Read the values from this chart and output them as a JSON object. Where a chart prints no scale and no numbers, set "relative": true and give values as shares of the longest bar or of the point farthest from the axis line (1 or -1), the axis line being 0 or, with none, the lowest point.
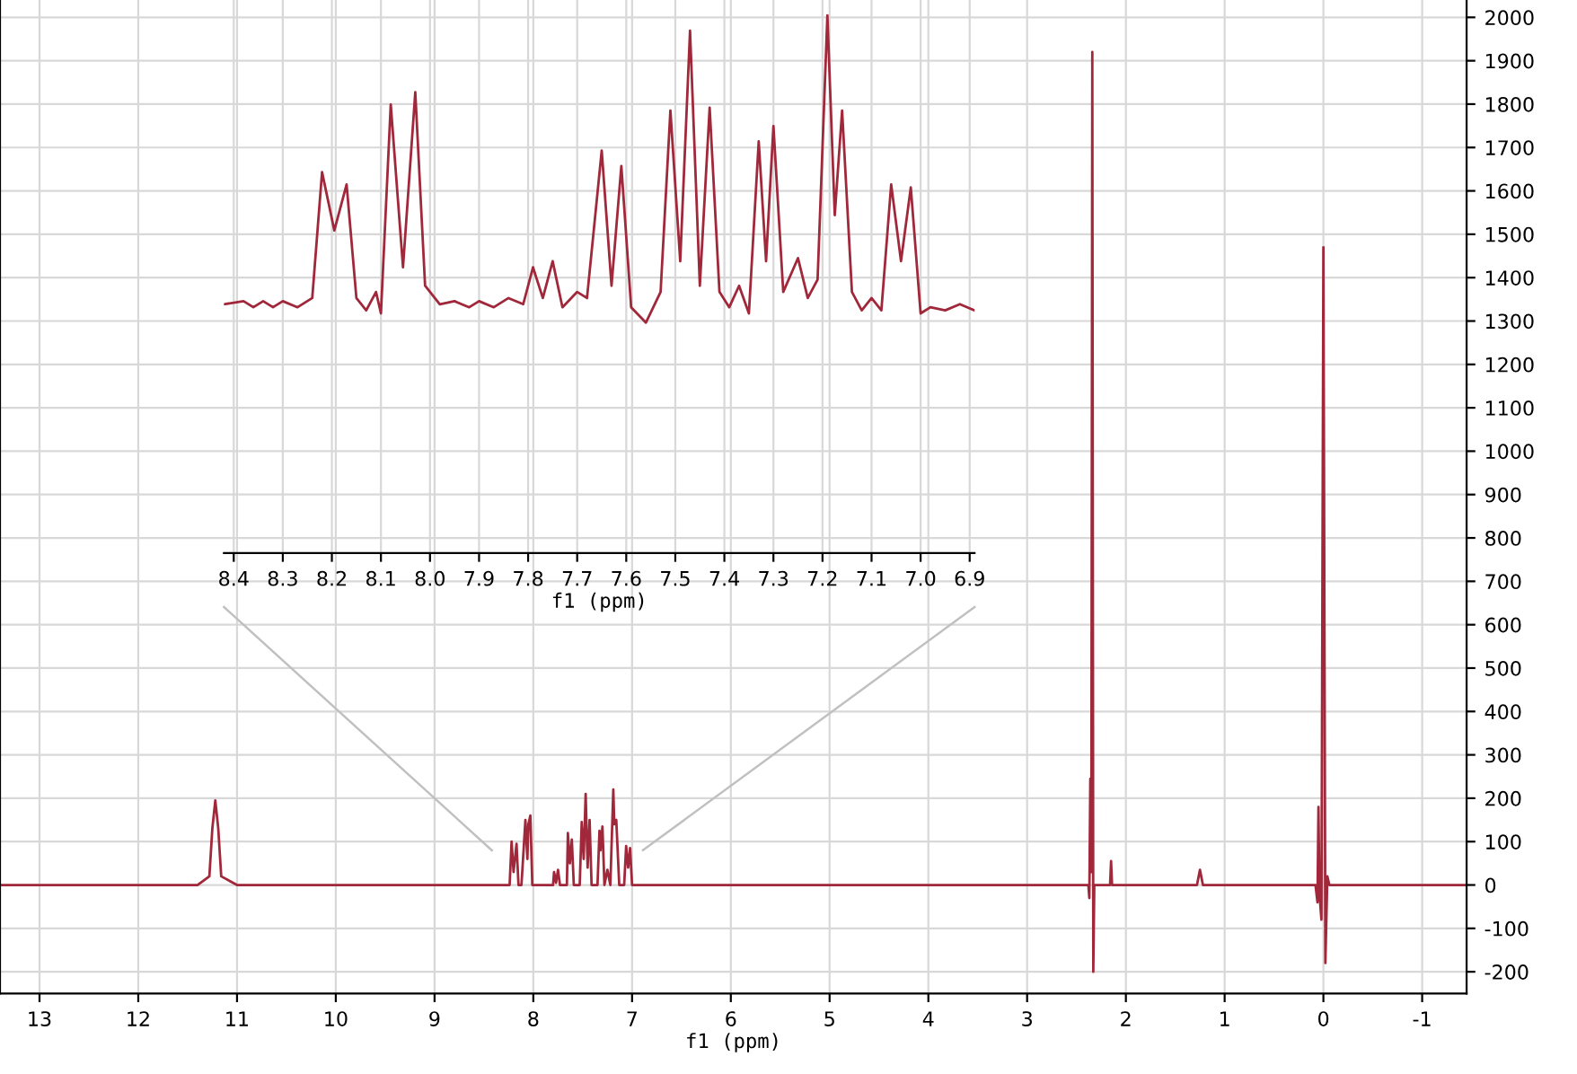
{
  "chart_data": [
    {
      "type": "line",
      "xlabel": "f1 (ppm)",
      "x": [
        13.4,
        11.4,
        11.28,
        11.25,
        11.22,
        11.19,
        11.16,
        11.0,
        8.4,
        8.24,
        8.22,
        8.2,
        8.17,
        8.15,
        8.12,
        8.08,
        8.06,
        8.05,
        8.03,
        8.01,
        7.9,
        7.8,
        7.79,
        7.77,
        7.75,
        7.73,
        7.66,
        7.65,
        7.63,
        7.61,
        7.59,
        7.53,
        7.51,
        7.49,
        7.47,
        7.45,
        7.43,
        7.41,
        7.35,
        7.33,
        7.32,
        7.3,
        7.28,
        7.25,
        7.22,
        7.19,
        7.18,
        7.16,
        7.13,
        7.08,
        7.06,
        7.04,
        7.02,
        7.0,
        6.9,
        2.5,
        2.38,
        2.37,
        2.36,
        2.35,
        2.34,
        2.33,
        2.32,
        2.3,
        2.2,
        2.16,
        2.15,
        2.14,
        1.35,
        1.28,
        1.25,
        1.22,
        0.2,
        0.08,
        0.06,
        0.05,
        0.04,
        0.02,
        0.0,
        -0.02,
        -0.04,
        -0.06,
        -1.45
      ],
      "values": [
        0,
        0,
        20,
        130,
        195,
        130,
        20,
        0,
        0,
        0,
        100,
        30,
        95,
        0,
        0,
        150,
        60,
        140,
        160,
        0,
        0,
        0,
        30,
        5,
        35,
        0,
        0,
        120,
        50,
        105,
        0,
        0,
        145,
        60,
        210,
        40,
        150,
        0,
        0,
        125,
        80,
        135,
        0,
        35,
        0,
        220,
        140,
        150,
        0,
        0,
        90,
        40,
        85,
        0,
        0,
        0,
        0,
        -30,
        245,
        30,
        1920,
        -200,
        0,
        0,
        0,
        0,
        55,
        0,
        0,
        0,
        35,
        0,
        0,
        0,
        -40,
        180,
        -20,
        -80,
        1470,
        -180,
        20,
        0,
        0
      ],
      "color": "#a0283a",
      "xlim": [
        13.4,
        -1.45
      ],
      "xticks": [
        13,
        12,
        11,
        10,
        9,
        8,
        7,
        6,
        5,
        4,
        3,
        2,
        1,
        0,
        -1
      ],
      "ylim": [
        -250,
        2040
      ],
      "yticks": [
        -200,
        -100,
        0,
        100,
        200,
        300,
        400,
        500,
        600,
        700,
        800,
        900,
        1000,
        1100,
        1200,
        1300,
        1400,
        1500,
        1600,
        1700,
        1800,
        1900,
        2000
      ],
      "grid": true
    },
    {
      "type": "line",
      "xlabel": "f1 (ppm)",
      "relative": true,
      "tick_labels": "x",
      "grid": "x",
      "color": "#a0283a",
      "x": [
        8.42,
        8.38,
        8.36,
        8.34,
        8.32,
        8.3,
        8.27,
        8.24,
        8.22,
        8.195,
        8.17,
        8.15,
        8.13,
        8.11,
        8.1,
        8.08,
        8.055,
        8.03,
        8.01,
        7.98,
        7.95,
        7.92,
        7.9,
        7.87,
        7.84,
        7.81,
        7.79,
        7.77,
        7.75,
        7.73,
        7.7,
        7.68,
        7.65,
        7.63,
        7.61,
        7.59,
        7.56,
        7.53,
        7.51,
        7.49,
        7.47,
        7.45,
        7.43,
        7.41,
        7.39,
        7.37,
        7.35,
        7.33,
        7.315,
        7.3,
        7.28,
        7.25,
        7.23,
        7.21,
        7.19,
        7.175,
        7.16,
        7.14,
        7.12,
        7.1,
        7.08,
        7.06,
        7.04,
        7.02,
        7.0,
        6.98,
        6.95,
        6.92,
        6.89
      ],
      "values": [
        0.06,
        0.07,
        0.05,
        0.07,
        0.05,
        0.07,
        0.05,
        0.08,
        0.49,
        0.3,
        0.45,
        0.08,
        0.04,
        0.1,
        0.03,
        0.71,
        0.18,
        0.75,
        0.12,
        0.06,
        0.07,
        0.05,
        0.07,
        0.05,
        0.08,
        0.06,
        0.18,
        0.08,
        0.2,
        0.05,
        0.1,
        0.08,
        0.56,
        0.12,
        0.51,
        0.05,
        0.0,
        0.1,
        0.69,
        0.2,
        0.95,
        0.12,
        0.7,
        0.1,
        0.05,
        0.12,
        0.03,
        0.59,
        0.2,
        0.64,
        0.1,
        0.21,
        0.08,
        0.14,
        1.0,
        0.35,
        0.69,
        0.1,
        0.04,
        0.08,
        0.04,
        0.45,
        0.2,
        0.44,
        0.03,
        0.05,
        0.04,
        0.06,
        0.04
      ],
      "xticks": [
        8.4,
        8.3,
        8.2,
        8.1,
        {
          "value": 8.0,
          "label": "8.0"
        },
        7.9,
        7.8,
        7.7,
        7.6,
        7.5,
        7.4,
        7.3,
        7.2,
        7.1,
        {
          "value": 7.0,
          "label": "7.0"
        },
        6.9
      ],
      "xlim": [
        8.42,
        6.89
      ]
    }
  ]
}
